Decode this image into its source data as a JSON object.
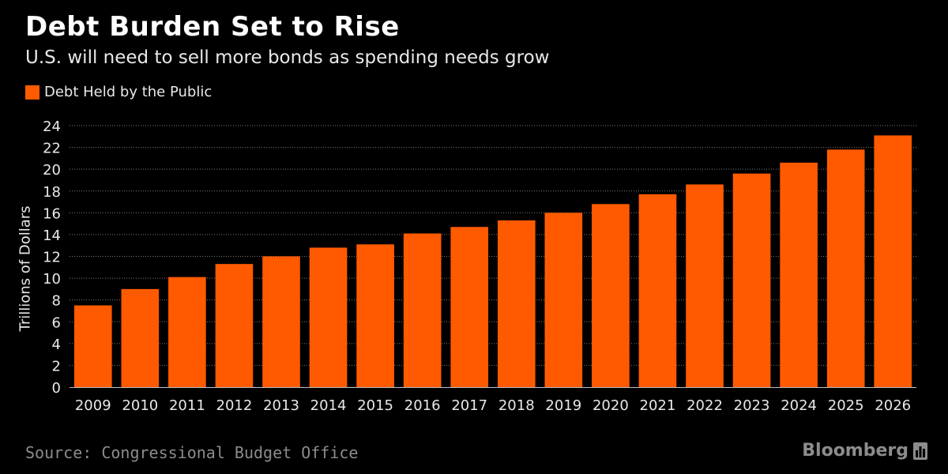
{
  "header": {
    "title": "Debt Burden Set to Rise",
    "subtitle": "U.S. will need to sell more bonds as spending needs grow"
  },
  "footer": {
    "source": "Source: Congressional Budget Office",
    "brand": "Bloomberg",
    "brand_icon": "bar-chart-icon"
  },
  "colors": {
    "background": "#000000",
    "bar": "#ff5a00",
    "grid": "#7a7a7a",
    "text": "#ffffff"
  },
  "chart_data": {
    "type": "bar",
    "title": "Debt Burden Set to Rise",
    "subtitle": "U.S. will need to sell more bonds as spending needs grow",
    "xlabel": "",
    "ylabel": "Trillions of Dollars",
    "ylim": [
      0,
      24
    ],
    "yticks": [
      0,
      2,
      4,
      6,
      8,
      10,
      12,
      14,
      16,
      18,
      20,
      22,
      24
    ],
    "grid": true,
    "legend_position": "top-left",
    "categories": [
      "2009",
      "2010",
      "2011",
      "2012",
      "2013",
      "2014",
      "2015",
      "2016",
      "2017",
      "2018",
      "2019",
      "2020",
      "2021",
      "2022",
      "2023",
      "2024",
      "2025",
      "2026"
    ],
    "series": [
      {
        "name": "Debt Held by the Public",
        "values": [
          7.5,
          9.0,
          10.1,
          11.3,
          12.0,
          12.8,
          13.1,
          14.1,
          14.7,
          15.3,
          16.0,
          16.8,
          17.7,
          18.6,
          19.6,
          20.6,
          21.8,
          23.1
        ]
      }
    ]
  }
}
